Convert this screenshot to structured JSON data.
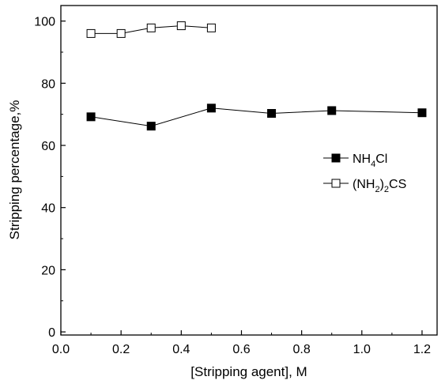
{
  "chart_data": {
    "type": "line",
    "xlabel": "[Stripping agent], M",
    "ylabel": "Stripping percentage,%",
    "xlim": [
      0.0,
      1.25
    ],
    "ylim": [
      -1,
      105
    ],
    "x_ticks": [
      "0.0",
      "0.2",
      "0.4",
      "0.6",
      "0.8",
      "1.0",
      "1.2"
    ],
    "y_ticks": [
      "0",
      "20",
      "40",
      "60",
      "80",
      "100"
    ],
    "legend_position": "right",
    "grid": false,
    "series": [
      {
        "name": "NH4Cl",
        "legend_parts": {
          "base": "NH",
          "sub": "4",
          "rest": "Cl"
        },
        "marker": "filled-square",
        "color": "#000000",
        "x": [
          0.1,
          0.3,
          0.5,
          0.7,
          0.9,
          1.2
        ],
        "y": [
          69.2,
          66.2,
          72.0,
          70.3,
          71.2,
          70.5
        ]
      },
      {
        "name": "(NH2)2CS",
        "legend_parts": {
          "base": "(NH",
          "sub": "2",
          "mid": ")",
          "sub2": "2",
          "rest": "CS"
        },
        "marker": "open-square",
        "color": "#000000",
        "x": [
          0.1,
          0.2,
          0.3,
          0.4,
          0.5
        ],
        "y": [
          96.0,
          96.0,
          97.8,
          98.5,
          97.8
        ]
      }
    ]
  }
}
